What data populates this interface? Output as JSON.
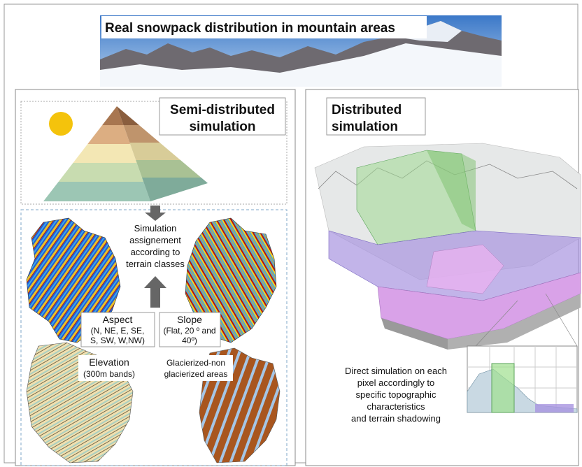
{
  "banner": {
    "title": "Real snowpack distribution in mountain areas"
  },
  "semi_distributed": {
    "title_lines": [
      "Semi-distributed",
      "simulation"
    ],
    "assignment_lines": [
      "Simulation",
      "assignement",
      "according to",
      "terrain classes"
    ],
    "aspect": {
      "title": "Aspect",
      "lines": [
        "(N, NE, E, SE,",
        "S, SW, W,NW)"
      ]
    },
    "slope": {
      "title": "Slope",
      "lines": [
        "(Flat, 20 º and",
        "40º)"
      ]
    },
    "elevation": {
      "title": "Elevation",
      "lines": [
        "(300m bands)"
      ]
    },
    "glacier": {
      "lines": [
        "Glacierized-non",
        "glacierized areas"
      ]
    }
  },
  "distributed": {
    "title_lines": [
      "Distributed",
      "simulation"
    ],
    "description_lines": [
      "Direct simulation on each",
      "pixel accordingly to",
      "specific topographic",
      "characteristics",
      "and terrain shadowing"
    ]
  }
}
